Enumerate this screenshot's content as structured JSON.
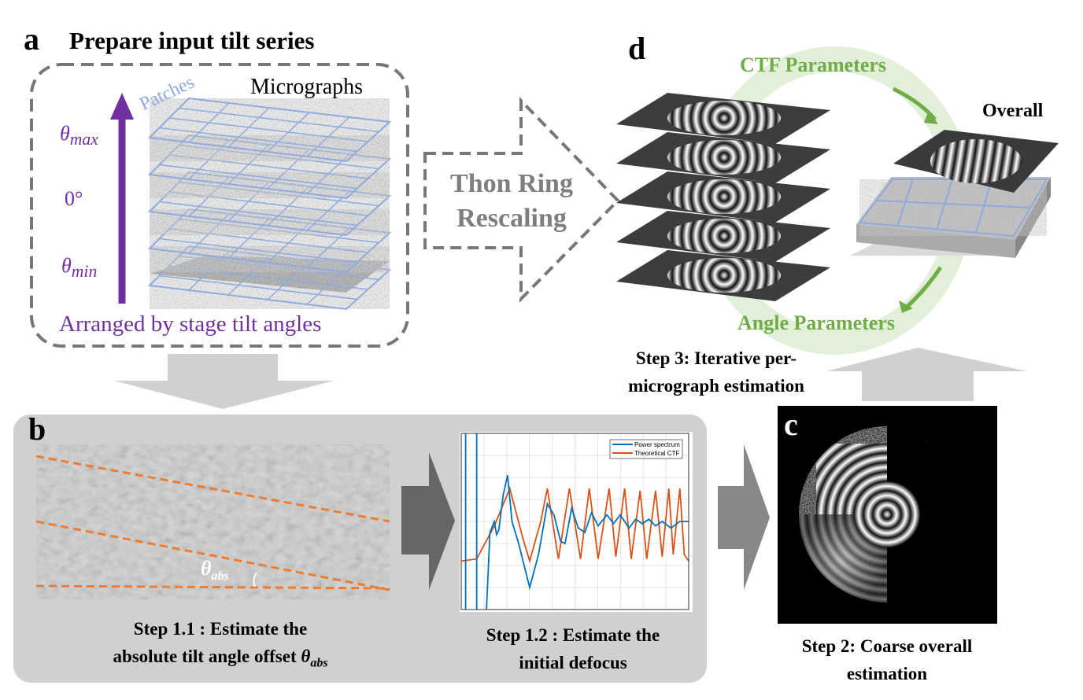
{
  "panel_a": {
    "letter": "a",
    "title": "Prepare input tilt series",
    "micrographs_label": "Micrographs",
    "patches_label": "Patches",
    "theta_max": "θ",
    "theta_max_sub": "max",
    "zero_label": "0°",
    "theta_min": "θ",
    "theta_min_sub": "min",
    "arranged_label": "Arranged by stage tilt angles",
    "purple": "#7030a0",
    "patch_blue": "#8faadc"
  },
  "rescale_arrow": {
    "line1": "Thon Ring",
    "line2": "Rescaling"
  },
  "panel_d": {
    "letter": "d",
    "ctf_label": "CTF Parameters",
    "angle_label": "Angle Parameters",
    "overall_label": "Overall",
    "caption_line1": "Step 3: Iterative per-",
    "caption_line2": "micrograph  estimation",
    "green": "#70ad47"
  },
  "panel_b": {
    "letter": "b",
    "theta_abs": "θ",
    "theta_abs_sub": "abs",
    "step11_line1": "Step 1.1 : Estimate the",
    "step11_line2": "absolute tilt angle offset ",
    "step11_theta": "θ",
    "step11_theta_sub": "abs",
    "step12_line1": "Step 1.2 : Estimate the",
    "step12_line2": "initial defocus",
    "orange": "#ed7d31"
  },
  "panel_c": {
    "letter": "c",
    "caption_line1": "Step 2: Coarse overall",
    "caption_line2": "estimation"
  },
  "chart_data": {
    "type": "line",
    "title": "",
    "xlabel": "",
    "ylabel": "",
    "xlim": [
      0,
      10.3
    ],
    "ylim": [
      0,
      8
    ],
    "grid": true,
    "legend_placement": "top-right",
    "series": [
      {
        "name": "Power spectrum",
        "color": "#0072bd",
        "points": [
          [
            0.2,
            -1
          ],
          [
            0.2,
            9
          ],
          [
            0.7,
            9
          ],
          [
            0.7,
            -1
          ],
          [
            1.1,
            -1
          ],
          [
            1.3,
            3.5
          ],
          [
            1.5,
            4.0
          ],
          [
            1.6,
            3.4
          ],
          [
            1.7,
            3.6
          ],
          [
            1.9,
            5.2
          ],
          [
            2.1,
            6.1
          ],
          [
            2.3,
            4.0
          ],
          [
            2.6,
            3.0
          ],
          [
            2.9,
            1.8
          ],
          [
            3.1,
            1.0
          ],
          [
            3.5,
            2.5
          ],
          [
            3.9,
            4.8
          ],
          [
            4.2,
            4.3
          ],
          [
            4.5,
            3.1
          ],
          [
            4.7,
            3.0
          ],
          [
            5.0,
            4.6
          ],
          [
            5.3,
            3.7
          ],
          [
            5.6,
            3.5
          ],
          [
            5.9,
            4.4
          ],
          [
            6.2,
            3.8
          ],
          [
            6.6,
            4.3
          ],
          [
            6.9,
            3.9
          ],
          [
            7.2,
            4.3
          ],
          [
            7.6,
            3.7
          ],
          [
            7.9,
            4.1
          ],
          [
            8.2,
            3.9
          ],
          [
            8.5,
            4.1
          ],
          [
            8.8,
            3.8
          ],
          [
            9.1,
            4.0
          ],
          [
            9.5,
            3.7
          ],
          [
            9.9,
            4.0
          ],
          [
            10.3,
            4.0
          ]
        ]
      },
      {
        "name": "Theoretical CTF",
        "color": "#d95319",
        "points": [
          [
            0,
            2.2
          ],
          [
            0.7,
            2.3
          ],
          [
            1.5,
            3.8
          ],
          [
            2.2,
            5.5
          ],
          [
            2.8,
            3.2
          ],
          [
            3.1,
            2.2
          ],
          [
            3.6,
            4.0
          ],
          [
            3.9,
            5.5
          ],
          [
            4.4,
            2.3
          ],
          [
            4.9,
            5.5
          ],
          [
            5.4,
            2.3
          ],
          [
            5.8,
            5.5
          ],
          [
            6.2,
            2.3
          ],
          [
            6.7,
            5.5
          ],
          [
            7.0,
            2.4
          ],
          [
            7.4,
            5.5
          ],
          [
            7.7,
            2.3
          ],
          [
            8.1,
            5.4
          ],
          [
            8.4,
            2.3
          ],
          [
            8.8,
            5.4
          ],
          [
            9.1,
            2.4
          ],
          [
            9.4,
            5.5
          ],
          [
            9.6,
            2.5
          ],
          [
            9.9,
            5.5
          ],
          [
            10.1,
            2.5
          ],
          [
            10.3,
            2.2
          ]
        ]
      }
    ]
  }
}
